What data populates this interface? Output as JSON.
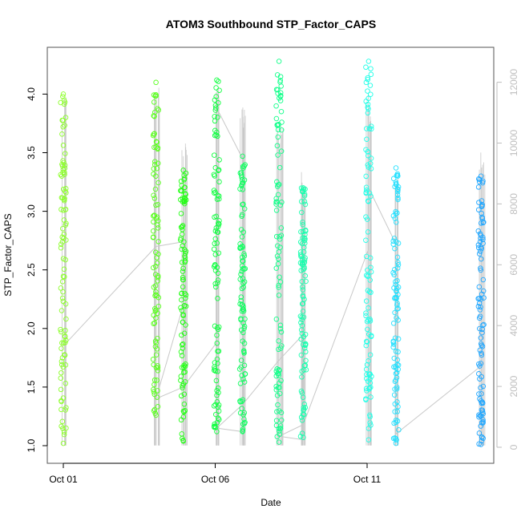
{
  "chart_data": {
    "type": "scatter",
    "title": "ATOM3 Southbound STP_Factor_CAPS",
    "xlabel": "Date",
    "ylabel": "STP_Factor_CAPS",
    "x_ticks": [
      "Oct 01",
      "Oct 06",
      "Oct 11"
    ],
    "x_range_days": [
      0.0,
      14.8
    ],
    "y_ticks": [
      "1.0",
      "1.5",
      "2.0",
      "2.5",
      "3.0",
      "3.5",
      "4.0"
    ],
    "ylim": [
      0.95,
      4.35
    ],
    "y2_ticks": [
      "0",
      "2000",
      "4000",
      "6000",
      "8000",
      "10000",
      "12000"
    ],
    "y2lim": [
      -300,
      12600
    ],
    "grid": false,
    "legend": "none",
    "colors": {
      "line": "#c8c8c8",
      "y2_axis": "#bebebe",
      "axis": "#555555"
    },
    "series": [
      {
        "day": 0.0,
        "color": "#8cff2a",
        "y_min": 1.02,
        "y_max": 4.0,
        "y2_max": 11700
      },
      {
        "day": 3.05,
        "color": "#5aff1e",
        "y_min": 1.26,
        "y_max": 4.1,
        "y2_max": 12000
      },
      {
        "day": 3.95,
        "color": "#22ff14",
        "y_min": 1.04,
        "y_max": 3.35,
        "y2_max": 10100
      },
      {
        "day": 5.05,
        "color": "#10ff40",
        "y_min": 1.12,
        "y_max": 4.12,
        "y2_max": 11800
      },
      {
        "day": 5.9,
        "color": "#10ff60",
        "y_min": 1.12,
        "y_max": 3.47,
        "y2_max": 11400
      },
      {
        "day": 7.1,
        "color": "#12ff8a",
        "y_min": 1.03,
        "y_max": 4.28,
        "y2_max": 11000
      },
      {
        "day": 7.9,
        "color": "#18ffae",
        "y_min": 1.07,
        "y_max": 3.2,
        "y2_max": 9300
      },
      {
        "day": 10.05,
        "color": "#22ffe8",
        "y_min": 1.05,
        "y_max": 4.28,
        "y2_max": 11600
      },
      {
        "day": 10.95,
        "color": "#22e0ff",
        "y_min": 1.02,
        "y_max": 3.37,
        "y2_max": 9000
      },
      {
        "day": 13.75,
        "color": "#1ea6ff",
        "y_min": 1.01,
        "y_max": 3.3,
        "y2_max": 9700
      }
    ],
    "line_path_days": [
      [
        0.0,
        1.85
      ],
      [
        3.05,
        2.7
      ],
      [
        3.95,
        2.74
      ],
      [
        3.95,
        2.2
      ],
      [
        3.05,
        1.4
      ],
      [
        3.95,
        1.5
      ],
      [
        5.05,
        1.88
      ],
      [
        5.05,
        3.88
      ],
      [
        5.9,
        3.45
      ],
      [
        5.9,
        1.12
      ],
      [
        5.05,
        1.15
      ],
      [
        5.9,
        1.35
      ],
      [
        7.1,
        1.73
      ],
      [
        7.9,
        1.95
      ],
      [
        7.9,
        1.05
      ],
      [
        7.1,
        1.08
      ],
      [
        7.9,
        1.18
      ],
      [
        10.05,
        2.68
      ],
      [
        10.05,
        3.2
      ],
      [
        10.95,
        2.72
      ],
      [
        10.95,
        1.1
      ],
      [
        13.75,
        1.68
      ]
    ]
  }
}
